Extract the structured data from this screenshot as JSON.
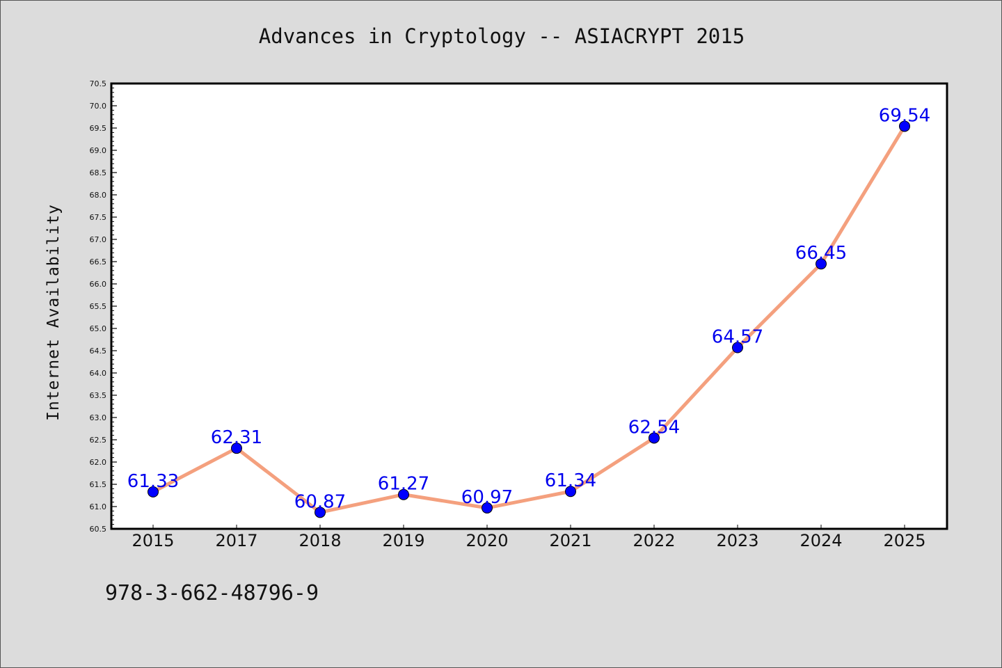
{
  "title": "Advances in Cryptology -- ASIACRYPT 2015",
  "footer_text": "978-3-662-48796-9",
  "chart_data": {
    "type": "line",
    "title": "Advances in Cryptology -- ASIACRYPT 2015",
    "xlabel": "",
    "ylabel": "Internet Availability",
    "categories": [
      "2015",
      "2017",
      "2018",
      "2019",
      "2020",
      "2021",
      "2022",
      "2023",
      "2024",
      "2025"
    ],
    "series": [
      {
        "values": [
          61.33,
          62.31,
          60.87,
          61.27,
          60.97,
          61.34,
          62.54,
          64.57,
          66.45,
          69.54
        ],
        "line_color": "#f4a07e",
        "marker_color": "#0000ff"
      }
    ],
    "data_labels": [
      "61.33",
      "62.31",
      "60.87",
      "61.27",
      "60.97",
      "61.34",
      "62.54",
      "64.57",
      "66.45",
      "69.54"
    ],
    "ylim": [
      60.5,
      70.5
    ],
    "y_ticks": [
      "60.5",
      "61.0",
      "61.5",
      "62.0",
      "62.5",
      "63.0",
      "63.5",
      "64.0",
      "64.5",
      "65.0",
      "65.5",
      "66.0",
      "66.5",
      "67.0",
      "67.5",
      "68.0",
      "68.5",
      "69.0",
      "69.5",
      "70.0",
      "70.5"
    ],
    "y_minor_step": 0.1,
    "grid": false,
    "legend": "none",
    "label_color": "#0000ff"
  }
}
